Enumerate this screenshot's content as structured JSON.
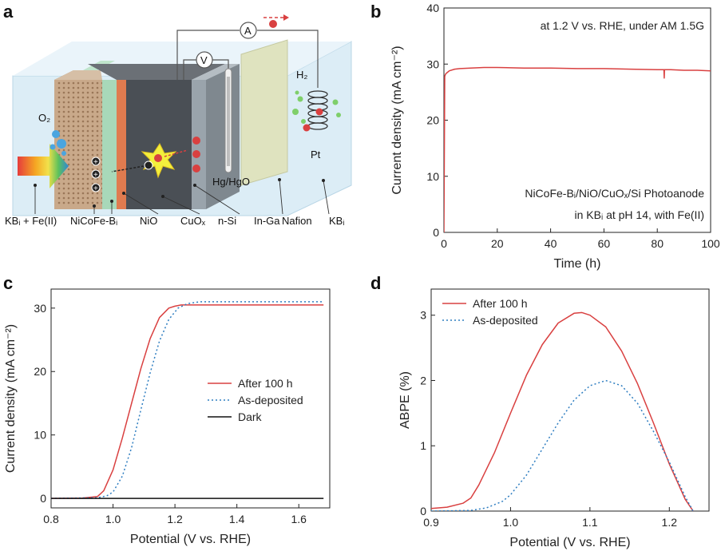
{
  "panels": {
    "a": "a",
    "b": "b",
    "c": "c",
    "d": "d"
  },
  "diagram": {
    "labels": {
      "electrolyte_left": "KBᵢ + Fe(II)",
      "catalyst": "NiCoFe-Bᵢ",
      "nio": "NiO",
      "cuox": "CuOₓ",
      "nsi": "n-Si",
      "inga": "In-Ga",
      "nafion": "Nafion",
      "electrolyte_right": "KBᵢ",
      "reference": "Hg/HgO",
      "counter": "Pt",
      "o2": "O₂",
      "h2": "H₂",
      "ammeter": "A",
      "voltmeter": "V"
    },
    "colors": {
      "catalyst": "#c9a98a",
      "green_layer": "#a8d8b9",
      "nio_layer": "#e07b4f",
      "si_block": "#4a4f55",
      "inga_layer": "#9aa4ac",
      "nafion": "#dfe3bf",
      "electrolyte": "#d8ecf6"
    }
  },
  "chart_data": [
    {
      "panel": "b",
      "type": "line",
      "xlabel": "Time (h)",
      "ylabel": "Current density (mA cm⁻²)",
      "xlim": [
        0,
        100
      ],
      "ylim": [
        0,
        40
      ],
      "xticks": [
        0,
        20,
        40,
        60,
        80,
        100
      ],
      "yticks": [
        0,
        10,
        20,
        30,
        40
      ],
      "annotations": [
        "at 1.2 V vs. RHE, under AM 1.5G",
        "NiCoFe-Bᵢ/NiO/CuOₓ/Si Photoanode",
        "in KBᵢ at pH 14, with Fe(II)"
      ],
      "series": [
        {
          "color": "#d94040",
          "x": [
            0,
            0.3,
            0.6,
            1,
            2,
            4,
            6,
            10,
            15,
            20,
            30,
            40,
            50,
            60,
            70,
            80,
            82.5,
            82.6,
            82.7,
            85,
            90,
            95,
            100
          ],
          "y": [
            0,
            27.8,
            28.2,
            28.4,
            28.8,
            29.1,
            29.2,
            29.3,
            29.4,
            29.4,
            29.3,
            29.3,
            29.2,
            29.2,
            29.1,
            29.0,
            29.0,
            27.5,
            29.0,
            29.0,
            28.9,
            28.9,
            28.8
          ]
        }
      ]
    },
    {
      "panel": "c",
      "type": "line",
      "xlabel": "Potential (V vs. RHE)",
      "ylabel": "Current density (mA cm⁻²)",
      "xlim": [
        0.8,
        1.7
      ],
      "ylim": [
        -1.5,
        33
      ],
      "xticks": [
        0.8,
        1.0,
        1.2,
        1.4,
        1.6
      ],
      "yticks": [
        0,
        10,
        20,
        30
      ],
      "legend_position": "center-right",
      "series": [
        {
          "name": "After 100 h",
          "color": "#d94040",
          "dash": "",
          "x": [
            0.8,
            0.9,
            0.95,
            0.97,
            1.0,
            1.03,
            1.06,
            1.09,
            1.12,
            1.15,
            1.18,
            1.2,
            1.22,
            1.25,
            1.3,
            1.4,
            1.5,
            1.6,
            1.68
          ],
          "y": [
            0,
            0.05,
            0.3,
            1.2,
            4.5,
            9.5,
            15.0,
            20.5,
            25.2,
            28.5,
            30.0,
            30.3,
            30.5,
            30.5,
            30.5,
            30.5,
            30.5,
            30.5,
            30.5
          ]
        },
        {
          "name": "As-deposited",
          "color": "#2f7ec1",
          "dash": "2,3",
          "x": [
            0.8,
            0.95,
            0.98,
            1.0,
            1.03,
            1.06,
            1.09,
            1.12,
            1.15,
            1.18,
            1.21,
            1.24,
            1.28,
            1.35,
            1.45,
            1.55,
            1.68
          ],
          "y": [
            0,
            0.1,
            0.4,
            1.0,
            3.5,
            8.0,
            14.0,
            19.8,
            24.8,
            28.2,
            30.0,
            30.7,
            31.0,
            31.0,
            31.0,
            31.0,
            31.0
          ]
        },
        {
          "name": "Dark",
          "color": "#111111",
          "dash": "",
          "x": [
            0.8,
            1.68
          ],
          "y": [
            0,
            0
          ]
        }
      ]
    },
    {
      "panel": "d",
      "type": "line",
      "xlabel": "Potential (V vs. RHE)",
      "ylabel": "ABPE (%)",
      "xlim": [
        0.9,
        1.25
      ],
      "ylim": [
        0,
        3.4
      ],
      "xticks": [
        0.9,
        1.0,
        1.1,
        1.2
      ],
      "yticks": [
        0,
        1,
        2,
        3
      ],
      "legend_position": "top-left",
      "series": [
        {
          "name": "After 100 h",
          "color": "#d94040",
          "dash": "",
          "x": [
            0.9,
            0.92,
            0.94,
            0.95,
            0.96,
            0.98,
            1.0,
            1.02,
            1.04,
            1.06,
            1.08,
            1.09,
            1.1,
            1.12,
            1.14,
            1.16,
            1.18,
            1.2,
            1.22,
            1.23
          ],
          "y": [
            0.04,
            0.06,
            0.12,
            0.2,
            0.4,
            0.9,
            1.5,
            2.08,
            2.55,
            2.88,
            3.03,
            3.04,
            3.0,
            2.82,
            2.45,
            1.95,
            1.35,
            0.72,
            0.18,
            0
          ]
        },
        {
          "name": "As-deposited",
          "color": "#2f7ec1",
          "dash": "2,3",
          "x": [
            0.9,
            0.95,
            0.97,
            0.99,
            1.0,
            1.02,
            1.04,
            1.06,
            1.08,
            1.1,
            1.12,
            1.14,
            1.16,
            1.18,
            1.2,
            1.22,
            1.23
          ],
          "y": [
            0,
            0.01,
            0.05,
            0.15,
            0.25,
            0.55,
            0.95,
            1.35,
            1.7,
            1.92,
            2.0,
            1.92,
            1.65,
            1.22,
            0.75,
            0.22,
            0
          ]
        }
      ]
    }
  ]
}
